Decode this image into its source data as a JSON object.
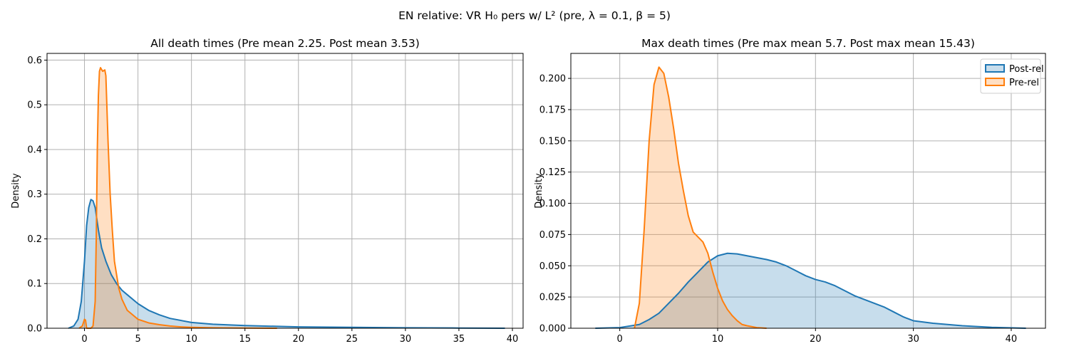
{
  "suptitle": "EN relative: VR H₀ pers w/ L² (pre, λ = 0.1, β = 5)",
  "colors": {
    "post": "#1f77b4",
    "pre": "#ff7f0e",
    "grid": "#b0b0b0"
  },
  "chart_data": [
    {
      "type": "area",
      "title": "All death times (Pre mean 2.25. Post mean 3.53)",
      "xlabel": "",
      "ylabel": "Density",
      "xlim": [
        -3.5,
        41
      ],
      "ylim": [
        0,
        0.615
      ],
      "xticks": [
        0,
        5,
        10,
        15,
        20,
        25,
        30,
        35,
        40
      ],
      "yticks": [
        0.0,
        0.1,
        0.2,
        0.3,
        0.4,
        0.5,
        0.6
      ],
      "ytick_labels": [
        "0.0",
        "0.1",
        "0.2",
        "0.3",
        "0.4",
        "0.5",
        "0.6"
      ],
      "grid": true,
      "series": [
        {
          "key": "post",
          "x": [
            -1.5,
            -1.0,
            -0.6,
            -0.3,
            0.0,
            0.2,
            0.4,
            0.6,
            0.8,
            1.0,
            1.3,
            1.6,
            2.0,
            2.5,
            3.0,
            3.5,
            4.0,
            5.0,
            6.0,
            7.0,
            8.0,
            10.0,
            12.0,
            15.0,
            20.0,
            25.0,
            30.0,
            35.0,
            39.3
          ],
          "y": [
            0.0,
            0.005,
            0.02,
            0.06,
            0.15,
            0.23,
            0.27,
            0.288,
            0.285,
            0.27,
            0.22,
            0.18,
            0.15,
            0.12,
            0.1,
            0.085,
            0.075,
            0.055,
            0.04,
            0.03,
            0.022,
            0.013,
            0.009,
            0.006,
            0.003,
            0.002,
            0.001,
            0.0005,
            0.0
          ]
        },
        {
          "key": "pre",
          "x": [
            -0.5,
            -0.2,
            0.0,
            0.1,
            0.2,
            0.4,
            0.6,
            0.8,
            1.0,
            1.1,
            1.2,
            1.3,
            1.4,
            1.5,
            1.7,
            1.9,
            2.0,
            2.2,
            2.4,
            2.6,
            2.8,
            3.0,
            3.2,
            3.5,
            3.8,
            4.0,
            4.5,
            5.0,
            6.0,
            7.0,
            8.0,
            9.0,
            10.0,
            12.0,
            15.0,
            18.0
          ],
          "y": [
            0.0,
            0.005,
            0.02,
            0.018,
            0.0,
            0.0,
            0.0,
            0.005,
            0.06,
            0.2,
            0.4,
            0.52,
            0.575,
            0.583,
            0.575,
            0.578,
            0.565,
            0.42,
            0.3,
            0.22,
            0.15,
            0.12,
            0.09,
            0.065,
            0.05,
            0.04,
            0.03,
            0.02,
            0.012,
            0.008,
            0.005,
            0.003,
            0.002,
            0.001,
            0.0005,
            0.0
          ]
        }
      ]
    },
    {
      "type": "area",
      "title": "Max death times (Pre max mean 5.7. Post max mean 15.43)",
      "xlabel": "",
      "ylabel": "Density",
      "xlim": [
        -5,
        43.5
      ],
      "ylim": [
        0,
        0.22
      ],
      "xticks": [
        0,
        10,
        20,
        30,
        40
      ],
      "yticks": [
        0.0,
        0.025,
        0.05,
        0.075,
        0.1,
        0.125,
        0.15,
        0.175,
        0.2
      ],
      "ytick_labels": [
        "0.000",
        "0.025",
        "0.050",
        "0.075",
        "0.100",
        "0.125",
        "0.150",
        "0.175",
        "0.200"
      ],
      "grid": true,
      "legend": {
        "position": "top-right",
        "entries": [
          "Post-rel",
          "Pre-rel"
        ]
      },
      "series": [
        {
          "key": "post",
          "name": "Post-rel",
          "x": [
            -2.5,
            0.0,
            2.0,
            3.0,
            4.0,
            5.0,
            6.0,
            7.0,
            8.0,
            9.0,
            10.0,
            11.0,
            12.0,
            13.0,
            14.0,
            15.0,
            16.0,
            17.0,
            18.0,
            19.0,
            20.0,
            21.0,
            22.0,
            23.0,
            24.0,
            25.0,
            26.0,
            27.0,
            28.0,
            29.0,
            30.0,
            32.0,
            35.0,
            38.0,
            41.5
          ],
          "y": [
            0.0,
            0.0005,
            0.003,
            0.007,
            0.012,
            0.02,
            0.028,
            0.037,
            0.045,
            0.053,
            0.058,
            0.06,
            0.0595,
            0.058,
            0.0565,
            0.055,
            0.053,
            0.05,
            0.046,
            0.042,
            0.039,
            0.037,
            0.034,
            0.03,
            0.026,
            0.023,
            0.02,
            0.017,
            0.013,
            0.009,
            0.006,
            0.004,
            0.002,
            0.0007,
            0.0
          ]
        },
        {
          "key": "pre",
          "name": "Pre-rel",
          "x": [
            1.5,
            2.0,
            2.5,
            3.0,
            3.5,
            4.0,
            4.5,
            5.0,
            5.5,
            6.0,
            6.5,
            7.0,
            7.5,
            8.0,
            8.5,
            9.0,
            9.5,
            10.0,
            10.5,
            11.0,
            11.5,
            12.0,
            12.5,
            13.0,
            14.0,
            15.0
          ],
          "y": [
            0.0,
            0.02,
            0.08,
            0.15,
            0.195,
            0.209,
            0.204,
            0.185,
            0.16,
            0.132,
            0.11,
            0.09,
            0.077,
            0.073,
            0.069,
            0.06,
            0.045,
            0.032,
            0.022,
            0.015,
            0.01,
            0.006,
            0.003,
            0.002,
            0.0005,
            0.0
          ]
        }
      ]
    }
  ]
}
